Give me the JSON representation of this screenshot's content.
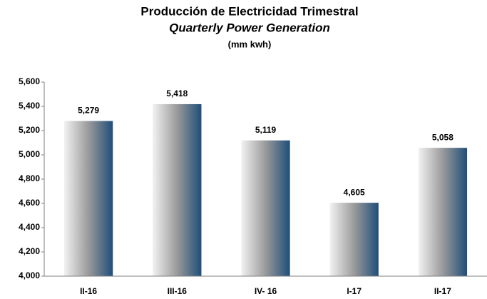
{
  "chart_data": {
    "type": "bar",
    "title": "Producción de Electricidad Trimestral",
    "subtitle": "Quarterly Power Generation",
    "units": "(mm kwh)",
    "categories": [
      "II-16",
      "III-16",
      "IV- 16",
      "I-17",
      "II-17"
    ],
    "values": [
      5279,
      5418,
      5119,
      4605,
      5058
    ],
    "value_labels": [
      "5,279",
      "5,418",
      "5,119",
      "4,605",
      "5,058"
    ],
    "gradient": [
      "#f2f2f2",
      "#9a9a9a",
      "#1f4e79"
    ],
    "ylim": [
      4000,
      5600
    ],
    "yticks": [
      {
        "value": 4000,
        "label": "4,000"
      },
      {
        "value": 4200,
        "label": "4,200"
      },
      {
        "value": 4400,
        "label": "4,400"
      },
      {
        "value": 4600,
        "label": "4,600"
      },
      {
        "value": 4800,
        "label": "4,800"
      },
      {
        "value": 5000,
        "label": "5,000"
      },
      {
        "value": 5200,
        "label": "5,200"
      },
      {
        "value": 5400,
        "label": "5,400"
      },
      {
        "value": 5600,
        "label": "5,600"
      }
    ],
    "grid": false
  }
}
